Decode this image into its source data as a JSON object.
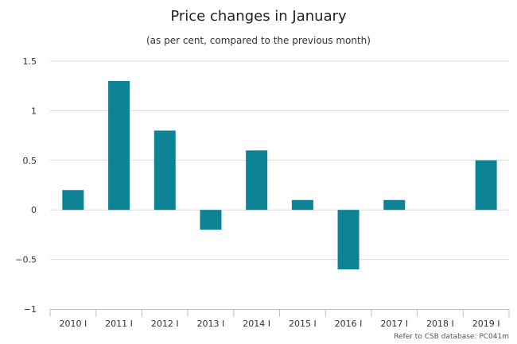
{
  "colors": {
    "bar": "#0e8396"
  },
  "chart_data": {
    "type": "bar",
    "title": "Price changes in January",
    "subtitle": "(as per cent, compared to the previous month)",
    "categories": [
      "2010 I",
      "2011 I",
      "2012 I",
      "2013 I",
      "2014 I",
      "2015 I",
      "2016 I",
      "2017 I",
      "2018 I",
      "2019 I"
    ],
    "values": [
      0.2,
      1.3,
      0.8,
      -0.2,
      0.6,
      0.1,
      -0.6,
      0.1,
      0,
      0.5
    ],
    "yticks": [
      "1.5",
      "1",
      "0.5",
      "0",
      "−0.5",
      "−1"
    ],
    "ytick_values": [
      1.5,
      1,
      0.5,
      0,
      -0.5,
      -1
    ],
    "ylim": [
      -1,
      1.5
    ],
    "xlabel": "",
    "ylabel": "",
    "grid": true,
    "legend": "none",
    "credit": "Refer to CSB database: PC041m"
  }
}
